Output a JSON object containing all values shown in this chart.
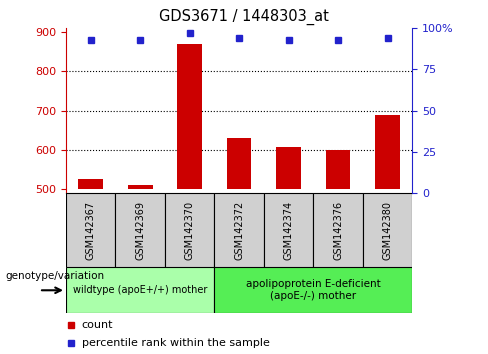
{
  "title": "GDS3671 / 1448303_at",
  "samples": [
    "GSM142367",
    "GSM142369",
    "GSM142370",
    "GSM142372",
    "GSM142374",
    "GSM142376",
    "GSM142380"
  ],
  "bar_values": [
    525,
    510,
    870,
    630,
    608,
    600,
    690
  ],
  "percentile_values": [
    93,
    93,
    97,
    94,
    93,
    93,
    94
  ],
  "bar_color": "#cc0000",
  "percentile_color": "#2222cc",
  "ylim_left": [
    490,
    910
  ],
  "ylim_right": [
    0,
    100
  ],
  "yticks_left": [
    500,
    600,
    700,
    800,
    900
  ],
  "yticks_right": [
    0,
    25,
    50,
    75,
    100
  ],
  "yright_labels": [
    "0",
    "25",
    "50",
    "75",
    "100%"
  ],
  "grid_values": [
    600,
    700,
    800
  ],
  "group1_label": "wildtype (apoE+/+) mother",
  "group2_label": "apolipoprotein E-deficient\n(apoE-/-) mother",
  "group1_indices": [
    0,
    1,
    2
  ],
  "group2_indices": [
    3,
    4,
    5,
    6
  ],
  "group1_color": "#aaffaa",
  "group2_color": "#55ee55",
  "bottom_label": "genotype/variation",
  "legend_count_label": "count",
  "legend_percentile_label": "percentile rank within the sample",
  "tick_label_color_left": "#cc0000",
  "tick_label_color_right": "#2222cc",
  "bar_bottom": 500,
  "figsize": [
    4.88,
    3.54
  ],
  "dpi": 100
}
